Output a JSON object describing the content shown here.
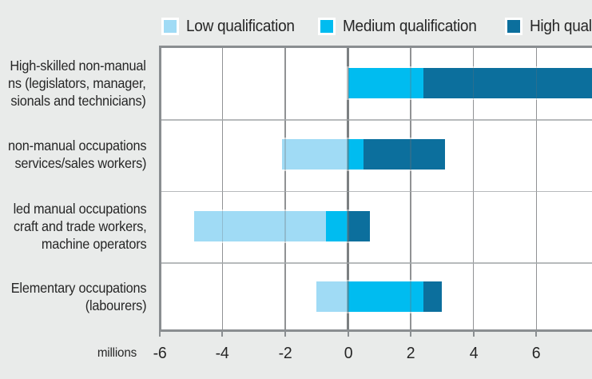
{
  "legend": {
    "items": [
      {
        "label": "Low qualification",
        "color": "#a0dbf5"
      },
      {
        "label": "Medium qualification",
        "color": "#00bcf0"
      },
      {
        "label": "High qualification",
        "color": "#0c6f9d"
      }
    ]
  },
  "axis": {
    "unit_label": "millions",
    "tick_values": [
      -6,
      -4,
      -2,
      0,
      2,
      4,
      6
    ]
  },
  "chart_data": {
    "type": "bar",
    "orientation": "horizontal",
    "stacked": true,
    "diverging": true,
    "unit": "millions",
    "xlim": [
      -6,
      7.75
    ],
    "grid": true,
    "legend_position": "top",
    "series": [
      "Low qualification",
      "Medium qualification",
      "High qualification"
    ],
    "series_colors": [
      "#a0dbf5",
      "#00bcf0",
      "#0c6f9d"
    ],
    "rows": [
      {
        "label_lines": [
          "High-skilled non-manual",
          "ns (legislators, manager,",
          "sionals and technicians)"
        ],
        "values": {
          "low": 0,
          "medium": 2.4,
          "high": 8.0
        },
        "note": "high segment runs past the right edge of the image (clipped)"
      },
      {
        "label_lines": [
          "non-manual occupations",
          "services/sales workers)"
        ],
        "values": {
          "low": -2.1,
          "medium": 0.5,
          "high": 2.6
        }
      },
      {
        "label_lines": [
          "led manual occupations",
          "craft and trade workers,",
          "machine operators"
        ],
        "values": {
          "low": -4.2,
          "medium": -0.7,
          "high": 0.7
        }
      },
      {
        "label_lines": [
          "Elementary occupations",
          "(labourers)"
        ],
        "values": {
          "low": -1.0,
          "medium": 2.4,
          "high": 0.6
        }
      }
    ]
  },
  "colors": {
    "background": "#e9ebea",
    "plot_background": "#ffffff",
    "frame": "#8a8e91",
    "gridline": "#9fa1a3",
    "row_separator": "#b7babc",
    "text": "#262626",
    "bar_outline": "#ffffff"
  }
}
